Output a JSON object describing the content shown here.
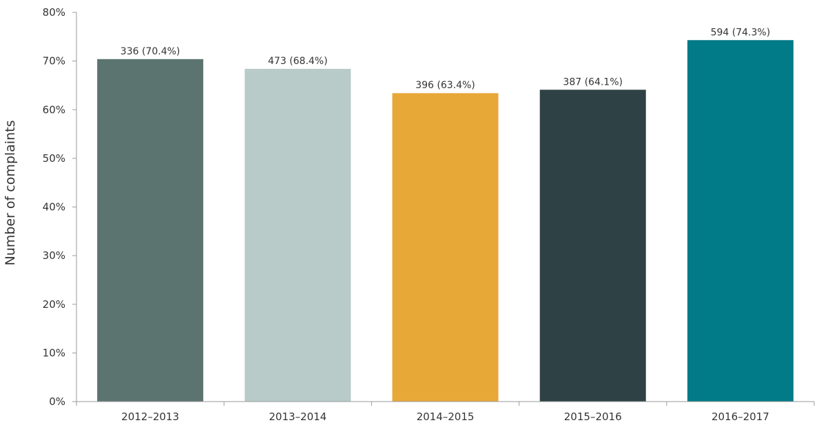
{
  "chart_data": {
    "type": "bar",
    "title": "",
    "xlabel": "",
    "ylabel": "Number of complaints",
    "ylim": [
      0,
      80
    ],
    "y_ticks": [
      0,
      10,
      20,
      30,
      40,
      50,
      60,
      70,
      80
    ],
    "y_tick_suffix": "%",
    "grid": false,
    "legend": "none",
    "categories": [
      "2012–2013",
      "2013–2014",
      "2014–2015",
      "2015–2016",
      "2016–2017"
    ],
    "values": [
      70.4,
      68.4,
      63.4,
      64.1,
      74.3
    ],
    "counts": [
      336,
      473,
      396,
      387,
      594
    ],
    "data_labels": [
      "336 (70.4%)",
      "473 (68.4%)",
      "396 (63.4%)",
      "387 (64.1%)",
      "594 (74.3%)"
    ],
    "colors": [
      "#5c7470",
      "#b8cbc8",
      "#e8a838",
      "#2e4145",
      "#007b87"
    ]
  }
}
